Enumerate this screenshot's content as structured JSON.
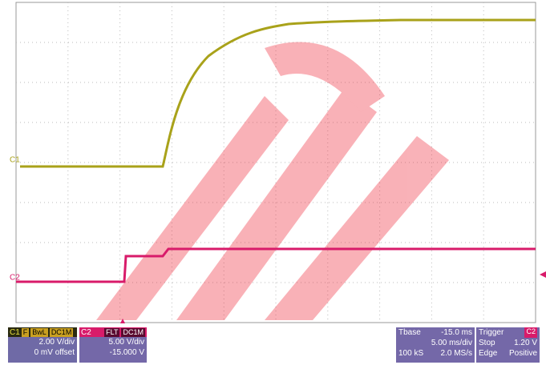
{
  "screen": {
    "markers": {
      "c1": "C1",
      "c2": "C2"
    },
    "ch1": {
      "name": "C1",
      "tags": [
        "F",
        "BwL",
        "DC1M"
      ],
      "scale": "2.00 V/div",
      "offset": "0 mV offset"
    },
    "ch2": {
      "name": "C2",
      "tags": [
        "FLT",
        "DC1M"
      ],
      "scale": "5.00 V/div",
      "offset": "-15.000 V"
    },
    "timebase": {
      "label": "Tbase",
      "delay": "-15.0 ms",
      "scale": "5.00 ms/div",
      "samples": "100 kS",
      "rate": "2.0 MS/s"
    },
    "trigger": {
      "label": "Trigger",
      "source": "C2",
      "mode": "Stop",
      "level": "1.20 V",
      "type": "Edge",
      "slope": "Positive"
    }
  }
}
